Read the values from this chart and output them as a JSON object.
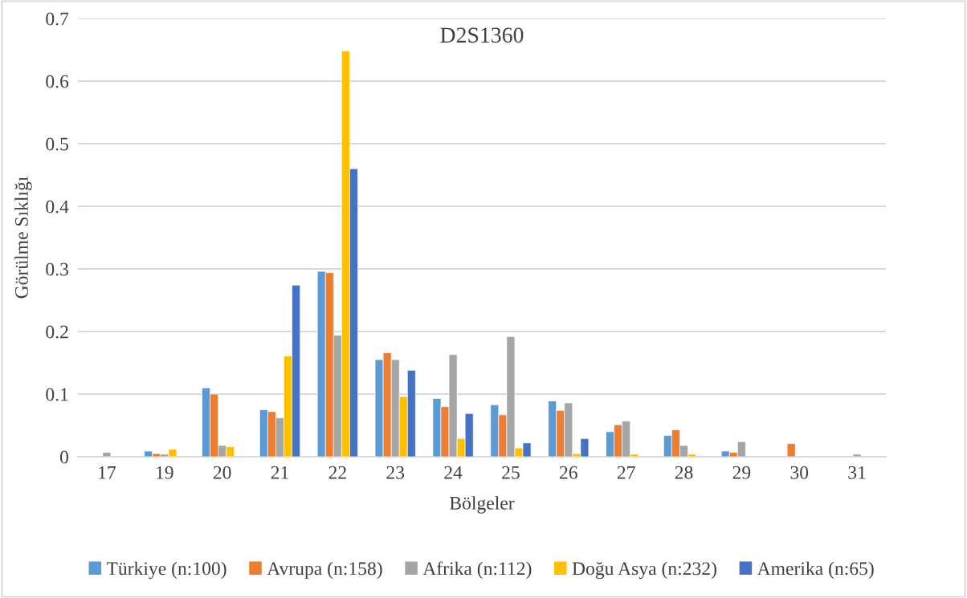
{
  "chart_data": {
    "type": "bar",
    "title": "D2S1360",
    "xlabel": "Bölgeler",
    "ylabel": "Görülme Sıklığı",
    "categories": [
      "17",
      "19",
      "20",
      "21",
      "22",
      "23",
      "24",
      "25",
      "26",
      "27",
      "28",
      "29",
      "30",
      "31"
    ],
    "series": [
      {
        "name": "Türkiye (n:100)",
        "color": "#5b9bd5",
        "values": [
          null,
          0.009,
          0.11,
          0.075,
          0.296,
          0.155,
          0.093,
          0.083,
          0.089,
          0.04,
          0.034,
          0.009,
          null,
          null
        ]
      },
      {
        "name": "Avrupa (n:158)",
        "color": "#ed7d31",
        "values": [
          null,
          0.005,
          0.1,
          0.072,
          0.294,
          0.166,
          0.08,
          0.067,
          0.074,
          0.051,
          0.043,
          0.007,
          0.021,
          null
        ]
      },
      {
        "name": "Afrika (n:112)",
        "color": "#a5a5a5",
        "values": [
          0.007,
          0.004,
          0.018,
          0.062,
          0.194,
          0.155,
          0.163,
          0.192,
          0.086,
          0.057,
          0.018,
          0.024,
          null,
          0.004
        ]
      },
      {
        "name": "Doğu Asya (n:232)",
        "color": "#ffc000",
        "values": [
          null,
          0.012,
          0.016,
          0.161,
          0.648,
          0.096,
          0.029,
          0.014,
          0.005,
          0.004,
          0.004,
          null,
          null,
          null
        ]
      },
      {
        "name": "Amerika (n:65)",
        "color": "#4472c4",
        "values": [
          null,
          null,
          null,
          0.274,
          0.46,
          0.138,
          0.069,
          0.022,
          0.029,
          null,
          null,
          null,
          null,
          null
        ]
      }
    ],
    "ylim": [
      0,
      0.7
    ],
    "yticks": [
      0,
      0.1,
      0.2,
      0.3,
      0.4,
      0.5,
      0.6,
      0.7
    ],
    "grid": "y",
    "legend": "bottom"
  }
}
